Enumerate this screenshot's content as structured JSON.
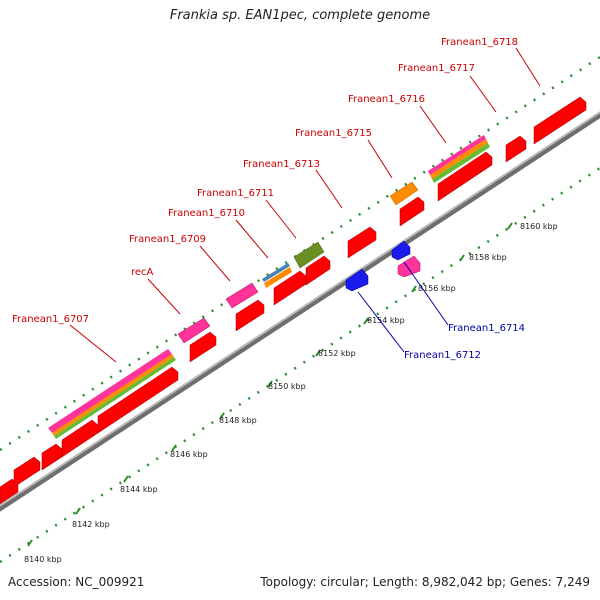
{
  "title": "Frankia sp. EAN1pec, complete genome",
  "footer": {
    "accession": "Accession: NC_009921",
    "topology": "Topology: circular; Length: 8,982,042 bp; Genes: 7,249"
  },
  "colors": {
    "backbone": "#8f8f8f",
    "tick": "#2e8b2e",
    "label_forward": "#cc0000",
    "label_reverse": "#0000aa",
    "cds_red": "#ff0000",
    "cds_blue": "#1a1aee",
    "cds_orange": "#ff8c00",
    "cds_magenta": "#ff3399",
    "cds_olive": "#6b8e23",
    "cds_steel": "#4682b4",
    "cds_green": "#66bb33"
  },
  "scale": {
    "unit": "kbp",
    "ticks": [
      "8140 kbp",
      "8142 kbp",
      "8144 kbp",
      "8146 kbp",
      "8148 kbp",
      "8150 kbp",
      "8152 kbp",
      "8154 kbp",
      "8156 kbp",
      "8158 kbp",
      "8160 kbp"
    ]
  },
  "labels": [
    {
      "name": "Franean1_6707",
      "strand": "forward"
    },
    {
      "name": "recA",
      "strand": "forward"
    },
    {
      "name": "Franean1_6709",
      "strand": "forward"
    },
    {
      "name": "Franean1_6710",
      "strand": "forward"
    },
    {
      "name": "Franean1_6711",
      "strand": "forward"
    },
    {
      "name": "Franean1_6713",
      "strand": "forward"
    },
    {
      "name": "Franean1_6715",
      "strand": "forward"
    },
    {
      "name": "Franean1_6716",
      "strand": "forward"
    },
    {
      "name": "Franean1_6717",
      "strand": "forward"
    },
    {
      "name": "Franean1_6718",
      "strand": "forward"
    },
    {
      "name": "Franean1_6712",
      "strand": "reverse"
    },
    {
      "name": "Franean1_6714",
      "strand": "reverse"
    }
  ]
}
